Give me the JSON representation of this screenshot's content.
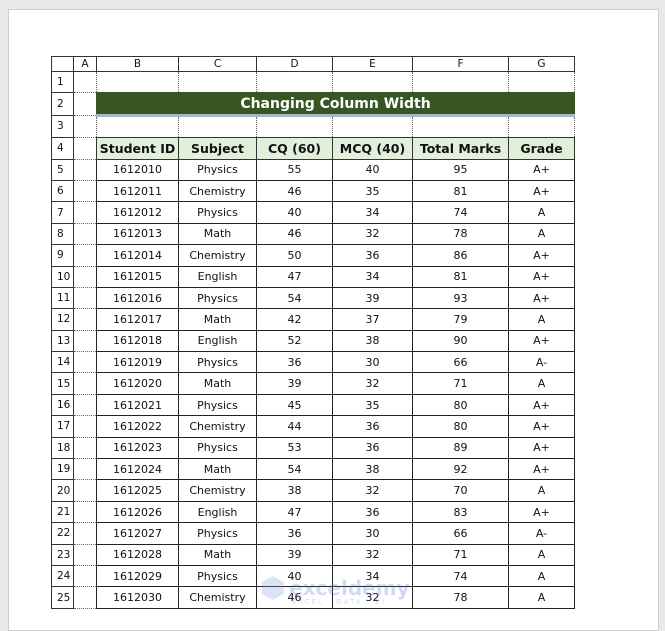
{
  "columns": [
    "A",
    "B",
    "C",
    "D",
    "E",
    "F",
    "G"
  ],
  "title": "Changing Column Width",
  "headers": [
    "Student ID",
    "Subject",
    "CQ  (60)",
    "MCQ  (40)",
    "Total Marks",
    "Grade"
  ],
  "rows": [
    [
      "1612010",
      "Physics",
      "55",
      "40",
      "95",
      "A+"
    ],
    [
      "1612011",
      "Chemistry",
      "46",
      "35",
      "81",
      "A+"
    ],
    [
      "1612012",
      "Physics",
      "40",
      "34",
      "74",
      "A"
    ],
    [
      "1612013",
      "Math",
      "46",
      "32",
      "78",
      "A"
    ],
    [
      "1612014",
      "Chemistry",
      "50",
      "36",
      "86",
      "A+"
    ],
    [
      "1612015",
      "English",
      "47",
      "34",
      "81",
      "A+"
    ],
    [
      "1612016",
      "Physics",
      "54",
      "39",
      "93",
      "A+"
    ],
    [
      "1612017",
      "Math",
      "42",
      "37",
      "79",
      "A"
    ],
    [
      "1612018",
      "English",
      "52",
      "38",
      "90",
      "A+"
    ],
    [
      "1612019",
      "Physics",
      "36",
      "30",
      "66",
      "A-"
    ],
    [
      "1612020",
      "Math",
      "39",
      "32",
      "71",
      "A"
    ],
    [
      "1612021",
      "Physics",
      "45",
      "35",
      "80",
      "A+"
    ],
    [
      "1612022",
      "Chemistry",
      "44",
      "36",
      "80",
      "A+"
    ],
    [
      "1612023",
      "Physics",
      "53",
      "36",
      "89",
      "A+"
    ],
    [
      "1612024",
      "Math",
      "54",
      "38",
      "92",
      "A+"
    ],
    [
      "1612025",
      "Chemistry",
      "38",
      "32",
      "70",
      "A"
    ],
    [
      "1612026",
      "English",
      "47",
      "36",
      "83",
      "A+"
    ],
    [
      "1612027",
      "Physics",
      "36",
      "30",
      "66",
      "A-"
    ],
    [
      "1612028",
      "Math",
      "39",
      "32",
      "71",
      "A"
    ],
    [
      "1612029",
      "Physics",
      "40",
      "34",
      "74",
      "A"
    ],
    [
      "1612030",
      "Chemistry",
      "46",
      "32",
      "78",
      "A"
    ]
  ],
  "watermark": {
    "name": "exceldemy",
    "tagline": "EXCEL · DATA · BI"
  },
  "colors": {
    "title_bg": "#375623",
    "header_bg": "#e2efda"
  }
}
